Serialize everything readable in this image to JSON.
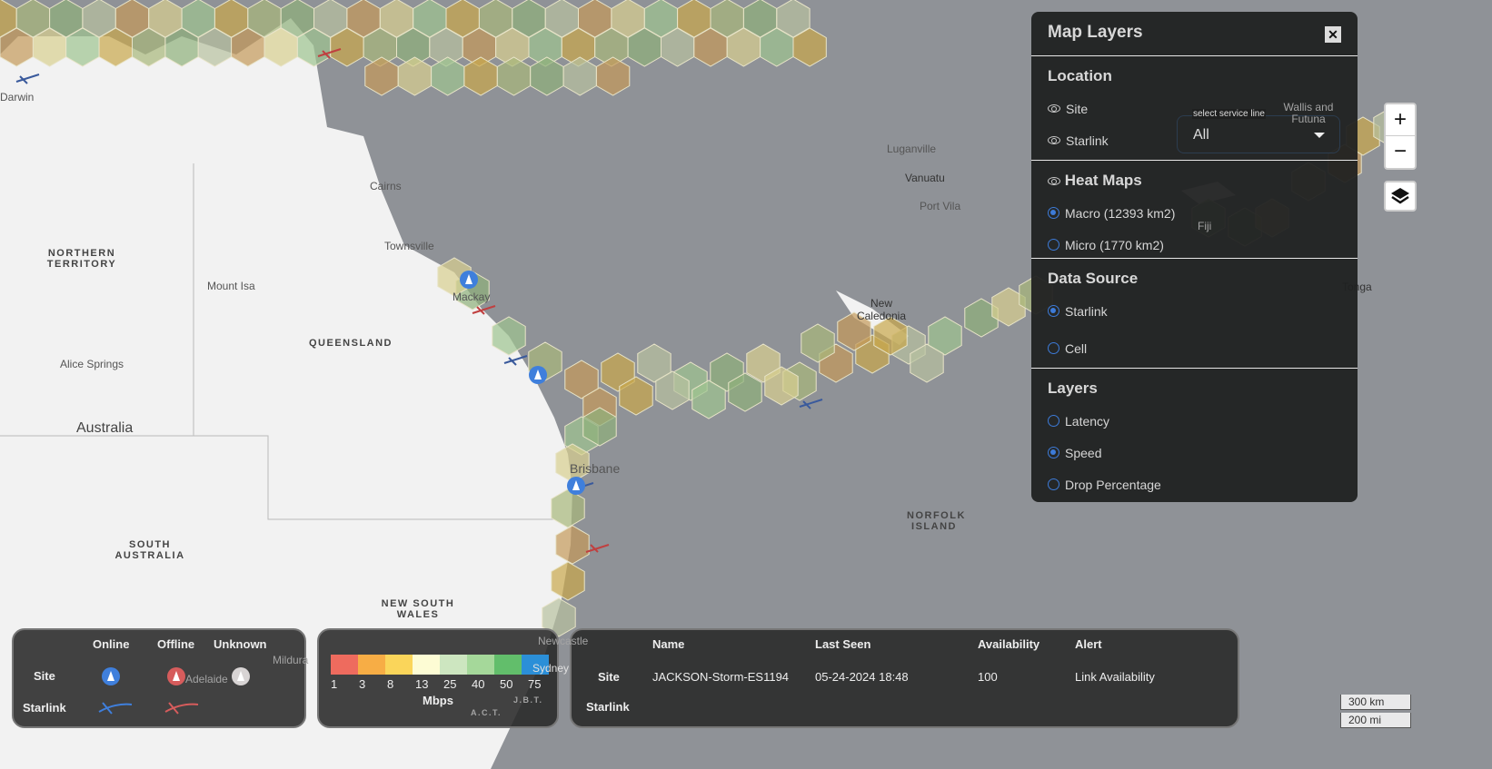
{
  "map": {
    "places": {
      "darwin": "Darwin",
      "cairns": "Cairns",
      "townsville": "Townsville",
      "mackay": "Mackay",
      "mount_isa": "Mount Isa",
      "alice": "Alice Springs",
      "australia": "Australia",
      "brisbane": "Brisbane",
      "mildura": "Mildura",
      "adelaide": "Adelaide",
      "newcastle": "Newcastle",
      "sydney": "Sydney",
      "luganville": "Luganville",
      "vanuatu": "Vanuatu",
      "port_vila": "Port Vila",
      "new_caledonia": "New Caledonia",
      "fiji": "Fiji",
      "tonga": "Tonga",
      "wallis": "Wallis and Futuna",
      "norfolk": "NORFOLK ISLAND",
      "nt": "NORTHERN TERRITORY",
      "qld": "QUEENSLAND",
      "sa": "SOUTH AUSTRALIA",
      "nsw": "NEW SOUTH WALES",
      "act": "A.C.T.",
      "jbt": "J.B.T."
    },
    "colors": {
      "ocean": "#8f9297",
      "land": "#f2f2f2"
    }
  },
  "layers_panel": {
    "title": "Map Layers",
    "close": "✕",
    "location": {
      "title": "Location",
      "site": "Site",
      "starlink": "Starlink",
      "service_line_label": "select service line",
      "service_line_value": "All"
    },
    "heat_maps": {
      "title": "Heat Maps",
      "options": [
        {
          "label": "Macro (12393 km2)",
          "selected": true
        },
        {
          "label": "Micro (1770 km2)",
          "selected": false
        }
      ]
    },
    "data_source": {
      "title": "Data Source",
      "options": [
        {
          "label": "Starlink",
          "selected": true
        },
        {
          "label": "Cell",
          "selected": false
        }
      ]
    },
    "layers": {
      "title": "Layers",
      "options": [
        {
          "label": "Latency",
          "selected": false
        },
        {
          "label": "Speed",
          "selected": true
        },
        {
          "label": "Drop Percentage",
          "selected": false
        }
      ]
    }
  },
  "zoom": {
    "in": "+",
    "out": "−"
  },
  "status_legend": {
    "cols": [
      "Online",
      "Offline",
      "Unknown"
    ],
    "rows": [
      "Site",
      "Starlink"
    ],
    "colors": {
      "online": "#3f7fdc",
      "offline": "#d65c5c",
      "unknown": "#d8d4d4"
    }
  },
  "speed_legend": {
    "ticks": [
      "1",
      "3",
      "8",
      "13",
      "25",
      "40",
      "50",
      "75"
    ],
    "colors": [
      "#ee6b5e",
      "#f7ad45",
      "#fad55a",
      "#fdfcd4",
      "#cde6c0",
      "#a5d89a",
      "#62be6b",
      "#2b8fd8"
    ],
    "unit": "Mbps"
  },
  "info": {
    "headers": [
      "Name",
      "Last Seen",
      "Availability",
      "Alert"
    ],
    "rows": [
      {
        "type": "Site",
        "name": "JACKSON-Storm-ES1194",
        "last_seen": "05-24-2024 18:48",
        "availability": "100",
        "alert": "Link Availability"
      },
      {
        "type": "Starlink"
      }
    ]
  },
  "scale": {
    "km": "300 km",
    "mi": "200 mi"
  }
}
